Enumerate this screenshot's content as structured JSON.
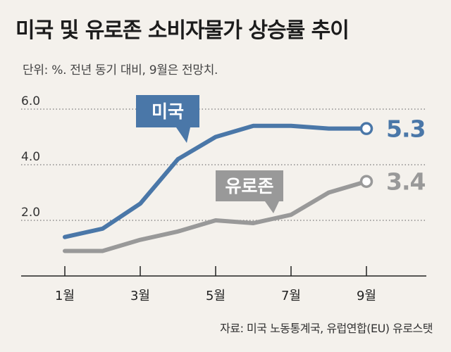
{
  "title": "미국 및 유로존 소비자물가 상승률 추이",
  "subtitle": "단위: %. 전년 동기 대비, 9월은 전망치.",
  "source": "자료: 미국 노동통계국, 유럽연합(EU) 유로스탯",
  "colors": {
    "us": "#4a77a8",
    "eu": "#999999",
    "grid": "#777777",
    "background": "#f4f1ec"
  },
  "chart_data": {
    "type": "line",
    "x": [
      1,
      2,
      3,
      4,
      5,
      6,
      7,
      8,
      9
    ],
    "x_tick_labels": [
      {
        "x": 1,
        "label": "1월"
      },
      {
        "x": 3,
        "label": "3월"
      },
      {
        "x": 5,
        "label": "5월"
      },
      {
        "x": 7,
        "label": "7월"
      },
      {
        "x": 9,
        "label": "9월"
      }
    ],
    "y_ticks": [
      {
        "value": 2.0,
        "label": "2.0"
      },
      {
        "value": 4.0,
        "label": "4.0"
      },
      {
        "value": 6.0,
        "label": "6.0"
      }
    ],
    "ylim": [
      0,
      6.3
    ],
    "grid": true,
    "series": [
      {
        "name": "미국",
        "values": [
          1.4,
          1.7,
          2.6,
          4.2,
          5.0,
          5.4,
          5.4,
          5.3,
          5.3
        ],
        "end_label": "5.3"
      },
      {
        "name": "유로존",
        "values": [
          0.9,
          0.9,
          1.3,
          1.6,
          2.0,
          1.9,
          2.2,
          3.0,
          3.4
        ],
        "end_label": "3.4"
      }
    ]
  }
}
